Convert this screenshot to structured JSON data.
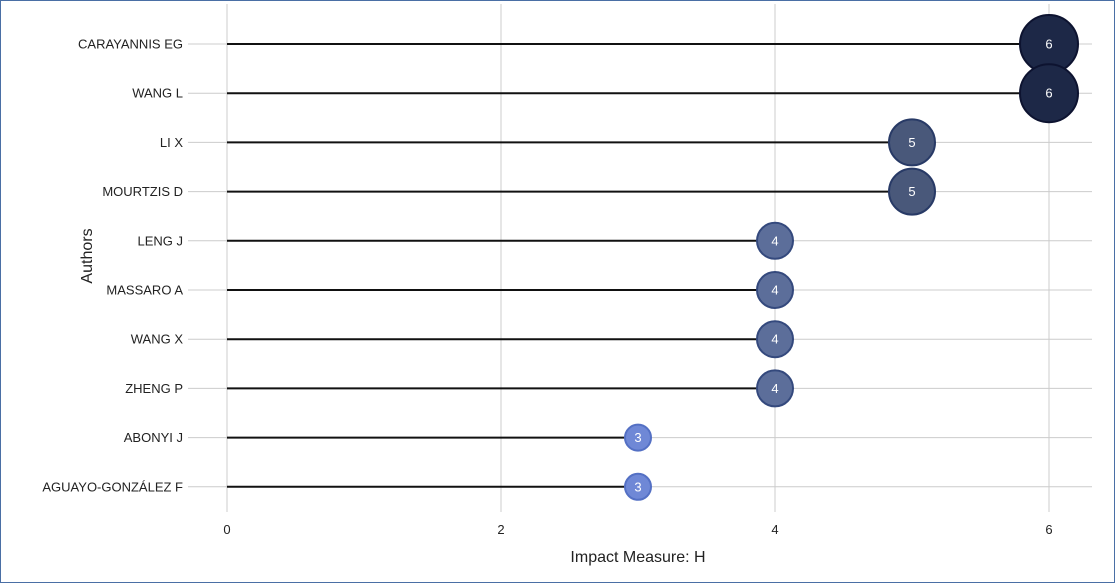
{
  "chart_data": {
    "type": "scatter",
    "subtype": "lollipop",
    "title": "",
    "xlabel": "Impact Measure: H",
    "ylabel": "Authors",
    "xlim": [
      0,
      6.3
    ],
    "xticks": [
      0,
      2,
      4,
      6
    ],
    "grid": true,
    "legend": "none",
    "categories": [
      "CARAYANNIS EG",
      "WANG L",
      "LI X",
      "MOURTZIS D",
      "LENG J",
      "MASSARO A",
      "WANG X",
      "ZHENG P",
      "ABONYI J",
      "AGUAYO-GONZÁLEZ F"
    ],
    "values": [
      6,
      6,
      5,
      5,
      4,
      4,
      4,
      4,
      3,
      3
    ],
    "colors": {
      "6": "#1d2847",
      "5": "#49587a",
      "4": "#5c6e9a",
      "3": "#6f88d6"
    }
  }
}
